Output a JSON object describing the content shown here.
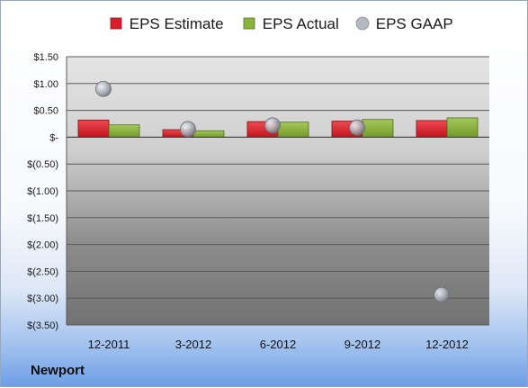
{
  "company_label": "Newport",
  "chart_data": {
    "type": "bar",
    "categories": [
      "12-2011",
      "3-2012",
      "6-2012",
      "9-2012",
      "12-2012"
    ],
    "series": [
      {
        "name": "EPS Estimate",
        "kind": "bar",
        "color": "#d9202a",
        "values": [
          0.32,
          0.14,
          0.29,
          0.3,
          0.31
        ]
      },
      {
        "name": "EPS Actual",
        "kind": "bar",
        "color": "#8cb43c",
        "values": [
          0.23,
          0.12,
          0.28,
          0.33,
          0.36
        ]
      },
      {
        "name": "EPS GAAP",
        "kind": "point",
        "color": "#a6aab2",
        "values": [
          0.9,
          0.15,
          0.22,
          0.18,
          -2.94
        ]
      }
    ],
    "ylim": [
      -3.5,
      1.5
    ],
    "yticks": [
      1.5,
      1.0,
      0.5,
      0,
      -0.5,
      -1.0,
      -1.5,
      -2.0,
      -2.5,
      -3.0,
      -3.5
    ],
    "ytick_labels": [
      "$1.50",
      "$1.00",
      "$0.50",
      "$-",
      "$(0.50)",
      "$(1.00)",
      "$(1.50)",
      "$(2.00)",
      "$(2.50)",
      "$(3.00)",
      "$(3.50)"
    ],
    "grid": true,
    "legend_position": "top"
  }
}
